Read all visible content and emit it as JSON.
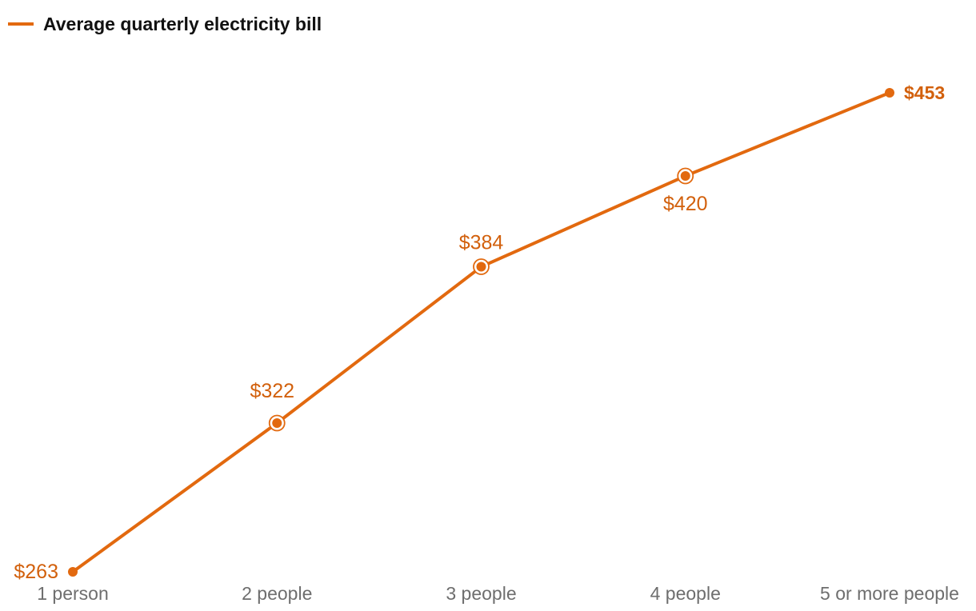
{
  "chart_data": {
    "type": "line",
    "categories": [
      "1 person",
      "2 people",
      "3 people",
      "4 people",
      "5 or more people"
    ],
    "series": [
      {
        "name": "Average quarterly electricity bill",
        "values": [
          263,
          322,
          384,
          420,
          453
        ],
        "data_labels": [
          "$263",
          "$322",
          "$384",
          "$420",
          "$453"
        ]
      }
    ],
    "title": "",
    "xlabel": "",
    "ylabel": "",
    "ylim": [
      263,
      453
    ],
    "grid": false,
    "legend_position": "top-left",
    "colors": {
      "line": "#e2690f",
      "label": "#d2600c",
      "tick": "#6e6e6e",
      "legend_text": "#111111"
    }
  }
}
